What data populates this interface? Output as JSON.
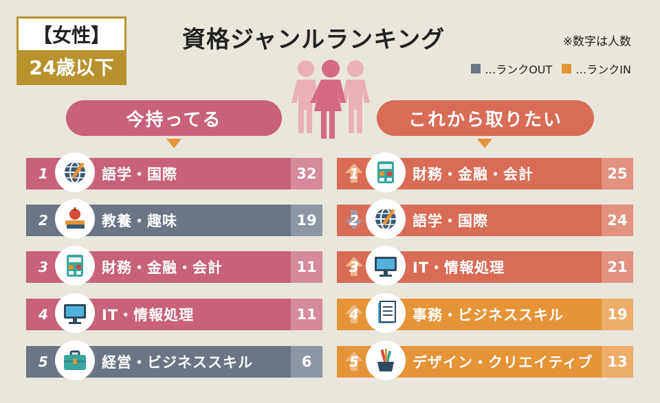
{
  "badge": {
    "top": "【女性】",
    "bottom": "24歳以下"
  },
  "title": "資格ジャンルランキング",
  "note": "※数字は人数",
  "legend": {
    "out_label": "…ランクOUT",
    "in_label": "…ランクIN",
    "out_color": "#6b7584",
    "in_color": "#e59438"
  },
  "left": {
    "heading": "今持ってる",
    "rows": [
      {
        "rank": "1",
        "label": "語学・国際",
        "value": "32",
        "style": "pink",
        "icon": "globe-icon"
      },
      {
        "rank": "2",
        "label": "教養・趣味",
        "value": "19",
        "style": "slate",
        "icon": "books-apple-icon"
      },
      {
        "rank": "3",
        "label": "財務・金融・会計",
        "value": "11",
        "style": "pink",
        "icon": "calculator-icon"
      },
      {
        "rank": "4",
        "label": "IT・情報処理",
        "value": "11",
        "style": "pink",
        "icon": "monitor-icon"
      },
      {
        "rank": "5",
        "label": "経営・ビジネススキル",
        "value": "6",
        "style": "slate",
        "icon": "briefcase-icon"
      }
    ]
  },
  "right": {
    "heading": "これから取りたい",
    "rows": [
      {
        "rank": "1",
        "label": "財務・金融・会計",
        "value": "25",
        "style": "coral",
        "icon": "calculator-icon",
        "trend": "up"
      },
      {
        "rank": "2",
        "label": "語学・国際",
        "value": "24",
        "style": "coral",
        "icon": "globe-icon",
        "trend": "down"
      },
      {
        "rank": "3",
        "label": "IT・情報処理",
        "value": "21",
        "style": "coral",
        "icon": "monitor-icon",
        "trend": "up"
      },
      {
        "rank": "4",
        "label": "事務・ビジネススキル",
        "value": "19",
        "style": "orange",
        "icon": "document-icon",
        "trend": "up"
      },
      {
        "rank": "5",
        "label": "デザイン・クリエイティブ",
        "value": "13",
        "style": "orange",
        "icon": "art-tools-icon",
        "trend": "up"
      }
    ]
  }
}
